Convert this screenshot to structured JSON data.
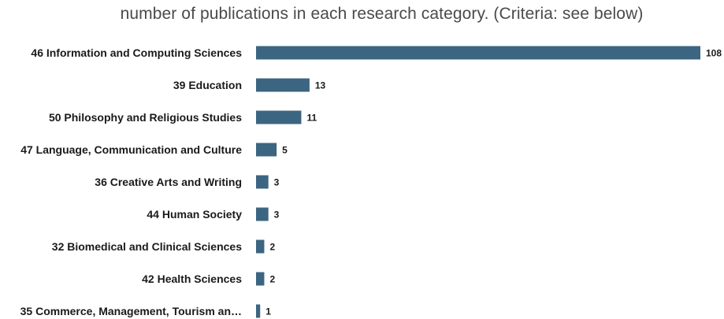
{
  "chart_data": {
    "type": "bar",
    "orientation": "horizontal",
    "title": "number of publications in each research category. (Criteria: see below)",
    "xlabel": "",
    "ylabel": "",
    "categories": [
      "46 Information and Computing Sciences",
      "39 Education",
      "50 Philosophy and Religious Studies",
      "47 Language, Communication and Culture",
      "36 Creative Arts and Writing",
      "44 Human Society",
      "32 Biomedical and Clinical Sciences",
      "42 Health Sciences",
      "35 Commerce, Management, Tourism an…"
    ],
    "values": [
      108,
      13,
      11,
      5,
      3,
      3,
      2,
      2,
      1
    ],
    "xlim": [
      0,
      108
    ],
    "grid": false,
    "legend": "none",
    "bar_color": "#3b6581",
    "data_labels": true
  }
}
